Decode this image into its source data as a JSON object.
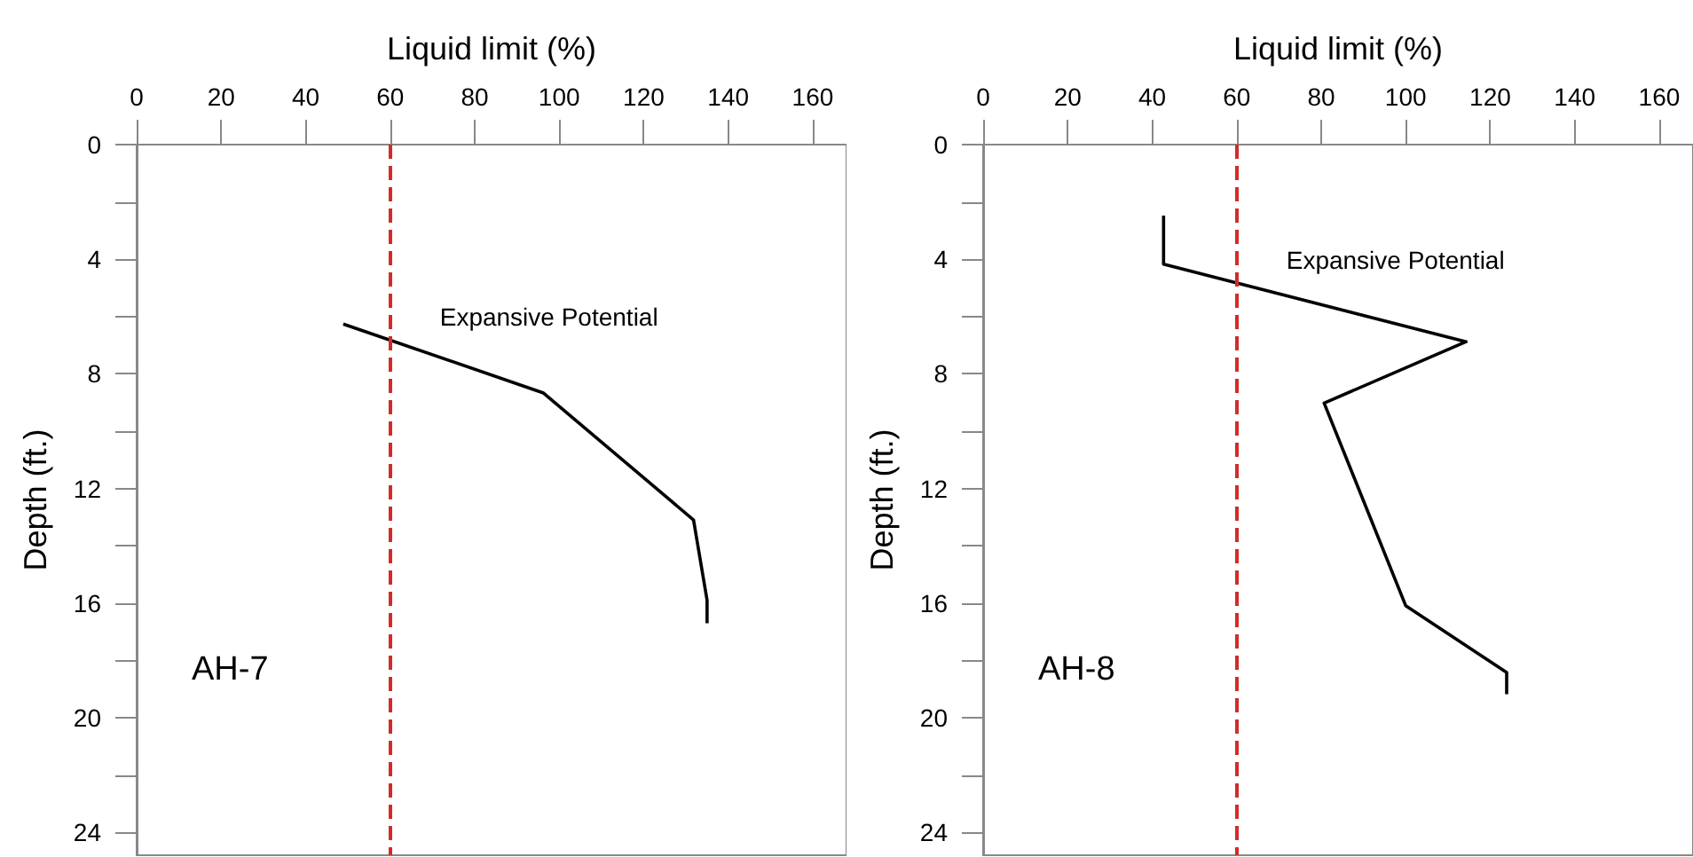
{
  "chart_data": [
    {
      "type": "line",
      "title": "AH-7",
      "xlabel": "Liquid limit (%)",
      "ylabel": "Depth (ft.)",
      "xlim": [
        0,
        168
      ],
      "ylim": [
        24.8,
        0
      ],
      "xticks": [
        0,
        20,
        40,
        60,
        80,
        100,
        120,
        140,
        160
      ],
      "yticks": [
        0,
        {
          "value": 2,
          "label": null
        },
        4,
        {
          "value": 6,
          "label": null
        },
        8,
        {
          "value": 10,
          "label": null
        },
        12,
        {
          "value": 14,
          "label": null
        },
        16,
        {
          "value": 18,
          "label": null
        },
        20,
        {
          "value": 22,
          "label": null
        },
        24
      ],
      "grid": false,
      "marker": "none",
      "line_style": "solid",
      "series": [
        {
          "color": "#000000",
          "x": [
            48.9,
            96.3,
            131.8,
            135,
            135
          ],
          "values": [
            6.26,
            8.67,
            13.1,
            15.9,
            16.7
          ]
        }
      ],
      "ref_lines": [
        {
          "axis": "x",
          "value": 60,
          "color": "#d42a2a",
          "line_style": "dashed"
        }
      ],
      "annotations": [
        "Expansive Potential"
      ]
    },
    {
      "type": "line",
      "title": "AH-8",
      "xlabel": "Liquid limit (%)",
      "ylabel": "Depth (ft.)",
      "xlim": [
        0,
        168
      ],
      "ylim": [
        24.8,
        0
      ],
      "xticks": [
        0,
        20,
        40,
        60,
        80,
        100,
        120,
        140,
        160
      ],
      "yticks": [
        0,
        {
          "value": 2,
          "label": null
        },
        4,
        {
          "value": 6,
          "label": null
        },
        8,
        {
          "value": 10,
          "label": null
        },
        12,
        {
          "value": 14,
          "label": null
        },
        16,
        {
          "value": 18,
          "label": null
        },
        20,
        {
          "value": 22,
          "label": null
        },
        24
      ],
      "grid": false,
      "marker": "none",
      "line_style": "solid",
      "series": [
        {
          "color": "#000000",
          "x": [
            42.7,
            42.7,
            114.3,
            80.7,
            100,
            123.9,
            123.9
          ],
          "values": [
            2.48,
            4.17,
            6.88,
            9.02,
            16.09,
            18.42,
            19.18
          ]
        }
      ],
      "ref_lines": [
        {
          "axis": "x",
          "value": 60,
          "color": "#d42a2a",
          "line_style": "dashed"
        }
      ],
      "annotations": [
        "Expansive Potential"
      ]
    }
  ]
}
